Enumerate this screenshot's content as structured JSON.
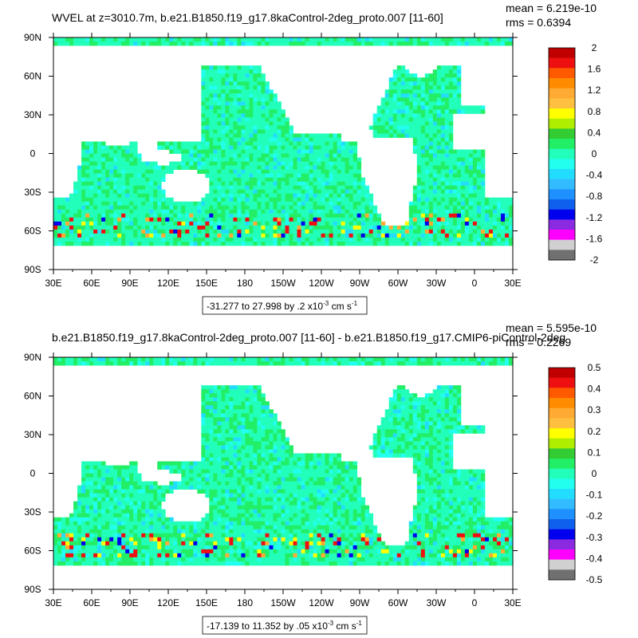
{
  "chart_data": [
    {
      "type": "heatmap",
      "title": "WVEL at z=3010.7m, b.e21.B1850.f19_g17.8kaControl-2deg_proto.007 [11-60]",
      "stats": {
        "mean": "mean = 6.219e-10",
        "rms": "rms = 0.6394"
      },
      "x_ticks": [
        "30E",
        "60E",
        "90E",
        "120E",
        "150E",
        "180",
        "150W",
        "120W",
        "90W",
        "60W",
        "30W",
        "0",
        "30E"
      ],
      "y_ticks": [
        "90N",
        "60N",
        "30N",
        "0",
        "30S",
        "60S",
        "90S"
      ],
      "range_label": {
        "prefix": "-31.277 to 27.998 by .2 x10",
        "sup": "-3",
        "unit": " cm s",
        "unit_sup": "-1"
      },
      "colorbar": {
        "labels": [
          "2",
          "1.6",
          "1.2",
          "0.8",
          "0.4",
          "0",
          "-0.4",
          "-0.8",
          "-1.2",
          "-1.6",
          "-2"
        ],
        "colors": [
          "#c00000",
          "#ee1010",
          "#ff5a00",
          "#ff8c00",
          "#ffaa33",
          "#ffc040",
          "#ffff00",
          "#b0ee00",
          "#33cc33",
          "#22ee66",
          "#22ffbb",
          "#22ffee",
          "#22ddff",
          "#33bbff",
          "#1e90ff",
          "#1060ee",
          "#0000ee",
          "#8a2be2",
          "#ff00ff",
          "#d0d0d0",
          "#707070"
        ]
      }
    },
    {
      "type": "heatmap",
      "title": "b.e21.B1850.f19_g17.8kaControl-2deg_proto.007 [11-60] - b.e21.B1850.f19_g17.CMIP6-piControl-2deg",
      "stats": {
        "mean": "mean = 5.595e-10",
        "rms": "rms = 0.2269"
      },
      "x_ticks": [
        "30E",
        "60E",
        "90E",
        "120E",
        "150E",
        "180",
        "150W",
        "120W",
        "90W",
        "60W",
        "30W",
        "0",
        "30E"
      ],
      "y_ticks": [
        "90N",
        "60N",
        "30N",
        "0",
        "30S",
        "60S",
        "90S"
      ],
      "range_label": {
        "prefix": "-17.139 to 11.352 by .05 x10",
        "sup": "-3",
        "unit": " cm s",
        "unit_sup": "-1"
      },
      "colorbar": {
        "labels": [
          "0.5",
          "0.4",
          "0.3",
          "0.2",
          "0.1",
          "0",
          "-0.1",
          "-0.2",
          "-0.3",
          "-0.4",
          "-0.5"
        ],
        "colors": [
          "#c00000",
          "#ee1010",
          "#ff5a00",
          "#ff8c00",
          "#ffaa33",
          "#ffc040",
          "#ffff00",
          "#b0ee00",
          "#33cc33",
          "#22ee66",
          "#22ffbb",
          "#22ffee",
          "#22ddff",
          "#33bbff",
          "#1e90ff",
          "#1060ee",
          "#0000ee",
          "#8a2be2",
          "#ff00ff",
          "#d0d0d0",
          "#707070"
        ]
      }
    }
  ]
}
